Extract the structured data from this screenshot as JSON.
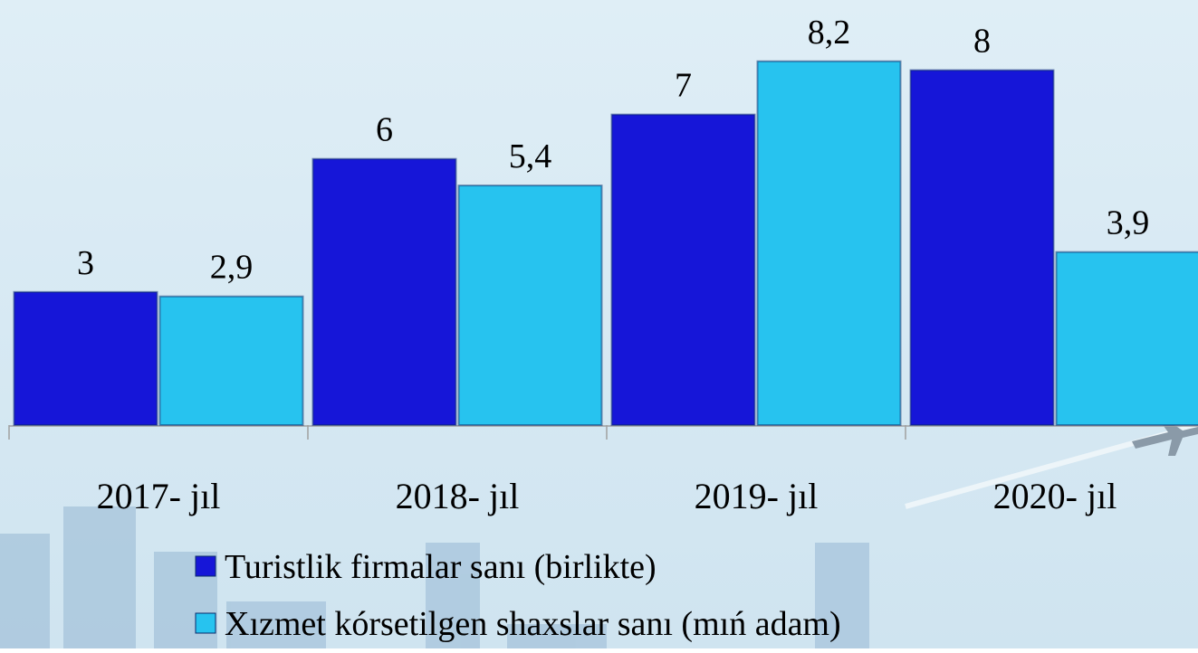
{
  "chart_data": {
    "type": "bar",
    "categories": [
      "2017- jıl",
      "2018- jıl",
      "2019- jıl",
      "2020- jıl"
    ],
    "series": [
      {
        "name": "Turistlik firmalar sanı (birlikte)",
        "color": "#1616d8",
        "values": [
          3,
          6,
          7,
          8
        ]
      },
      {
        "name": "Xızmet kórsetilgen shaxslar sanı (mıń adam)",
        "color": "#27c3ef",
        "values": [
          2.9,
          5.4,
          8.2,
          3.9
        ],
        "value_labels": [
          "2,9",
          "5,4",
          "8,2",
          "3,9"
        ]
      }
    ],
    "ylim": [
      0,
      9.5
    ]
  }
}
